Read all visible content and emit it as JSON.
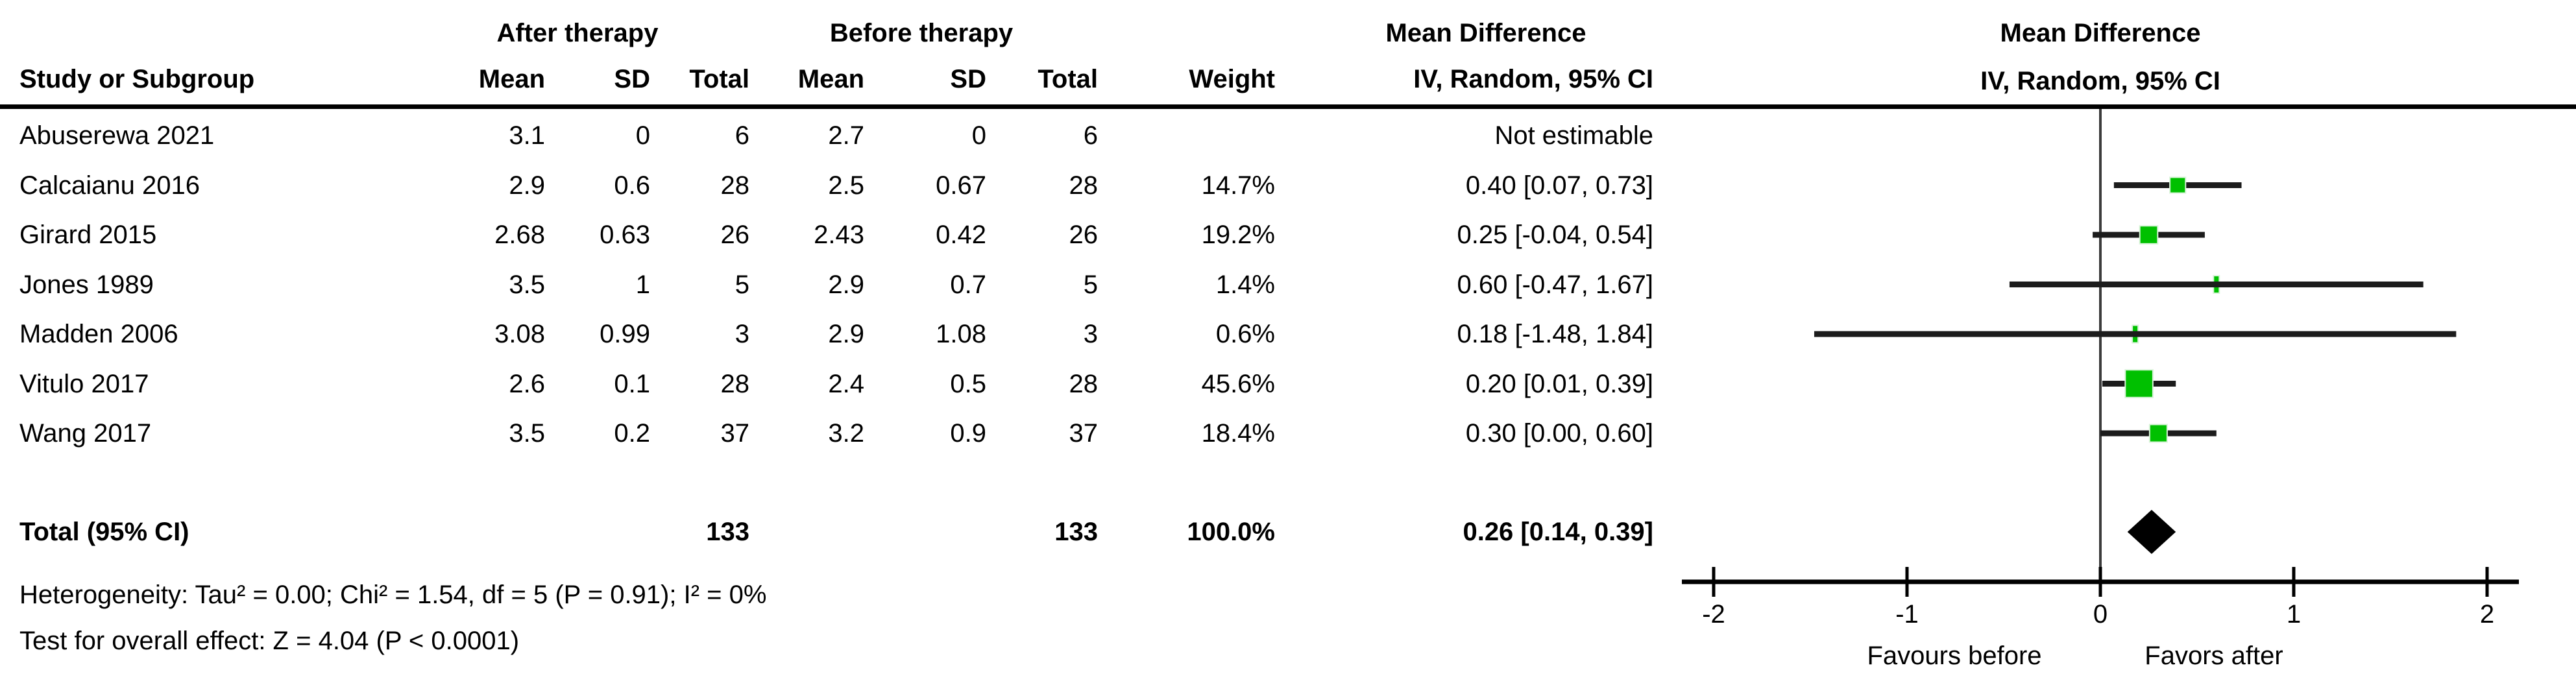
{
  "header": {
    "group_after": "After therapy",
    "group_before": "Before therapy",
    "effect_col_title": "Mean Difference",
    "plot_title_line1": "Mean Difference",
    "plot_title_line2": "IV, Random, 95% CI",
    "columns": [
      "Study or Subgroup",
      "Mean",
      "SD",
      "Total",
      "Mean",
      "SD",
      "Total",
      "Weight",
      "IV, Random, 95% CI"
    ]
  },
  "chart_data": {
    "type": "forest",
    "effect_measure": "Mean Difference",
    "method": "IV, Random, 95% CI",
    "xlim": [
      -2,
      2
    ],
    "x_ticks": [
      "-2",
      "-1",
      "0",
      "1",
      "2"
    ],
    "x_tick_values": [
      -2,
      -1,
      0,
      1,
      2
    ],
    "favours_left": "Favours before",
    "favours_right": "Favors after",
    "studies": [
      {
        "name": "Abuserewa 2021",
        "mean_after": "3.1",
        "sd_after": "0",
        "total_after": "6",
        "mean_before": "2.7",
        "sd_before": "0",
        "total_before": "6",
        "weight": "",
        "ci_text": "Not estimable",
        "estimable": false
      },
      {
        "name": "Calcaianu 2016",
        "mean_after": "2.9",
        "sd_after": "0.6",
        "total_after": "28",
        "mean_before": "2.5",
        "sd_before": "0.67",
        "total_before": "28",
        "weight": "14.7%",
        "ci_text": "0.40 [0.07, 0.73]",
        "estimable": true,
        "md": 0.4,
        "ci_low": 0.07,
        "ci_high": 0.73,
        "weight_pct": 14.7
      },
      {
        "name": "Girard 2015",
        "mean_after": "2.68",
        "sd_after": "0.63",
        "total_after": "26",
        "mean_before": "2.43",
        "sd_before": "0.42",
        "total_before": "26",
        "weight": "19.2%",
        "ci_text": "0.25 [-0.04, 0.54]",
        "estimable": true,
        "md": 0.25,
        "ci_low": -0.04,
        "ci_high": 0.54,
        "weight_pct": 19.2
      },
      {
        "name": "Jones 1989",
        "mean_after": "3.5",
        "sd_after": "1",
        "total_after": "5",
        "mean_before": "2.9",
        "sd_before": "0.7",
        "total_before": "5",
        "weight": "1.4%",
        "ci_text": "0.60 [-0.47, 1.67]",
        "estimable": true,
        "md": 0.6,
        "ci_low": -0.47,
        "ci_high": 1.67,
        "weight_pct": 1.4
      },
      {
        "name": "Madden 2006",
        "mean_after": "3.08",
        "sd_after": "0.99",
        "total_after": "3",
        "mean_before": "2.9",
        "sd_before": "1.08",
        "total_before": "3",
        "weight": "0.6%",
        "ci_text": "0.18 [-1.48, 1.84]",
        "estimable": true,
        "md": 0.18,
        "ci_low": -1.48,
        "ci_high": 1.84,
        "weight_pct": 0.6
      },
      {
        "name": "Vitulo 2017",
        "mean_after": "2.6",
        "sd_after": "0.1",
        "total_after": "28",
        "mean_before": "2.4",
        "sd_before": "0.5",
        "total_before": "28",
        "weight": "45.6%",
        "ci_text": "0.20 [0.01, 0.39]",
        "estimable": true,
        "md": 0.2,
        "ci_low": 0.01,
        "ci_high": 0.39,
        "weight_pct": 45.6
      },
      {
        "name": "Wang 2017",
        "mean_after": "3.5",
        "sd_after": "0.2",
        "total_after": "37",
        "mean_before": "3.2",
        "sd_before": "0.9",
        "total_before": "37",
        "weight": "18.4%",
        "ci_text": "0.30 [0.00, 0.60]",
        "estimable": true,
        "md": 0.3,
        "ci_low": 0.0,
        "ci_high": 0.6,
        "weight_pct": 18.4
      }
    ],
    "total": {
      "label": "Total (95% CI)",
      "total_after": "133",
      "total_before": "133",
      "weight": "100.0%",
      "ci_text": "0.26 [0.14, 0.39]",
      "md": 0.26,
      "ci_low": 0.14,
      "ci_high": 0.39
    }
  },
  "footer": {
    "heterogeneity": "Heterogeneity: Tau² = 0.00; Chi² = 1.54, df = 5 (P = 0.91); I² = 0%",
    "overall_effect": "Test for overall effect: Z = 4.04 (P < 0.0001)"
  },
  "colors": {
    "square_green": "#00c000",
    "square_border": "#d8f3d8",
    "ci_line": "#1c1c1c",
    "diamond": "#000000",
    "axis": "#000000",
    "zero_line": "#3c3c3c",
    "text": "#000000"
  }
}
